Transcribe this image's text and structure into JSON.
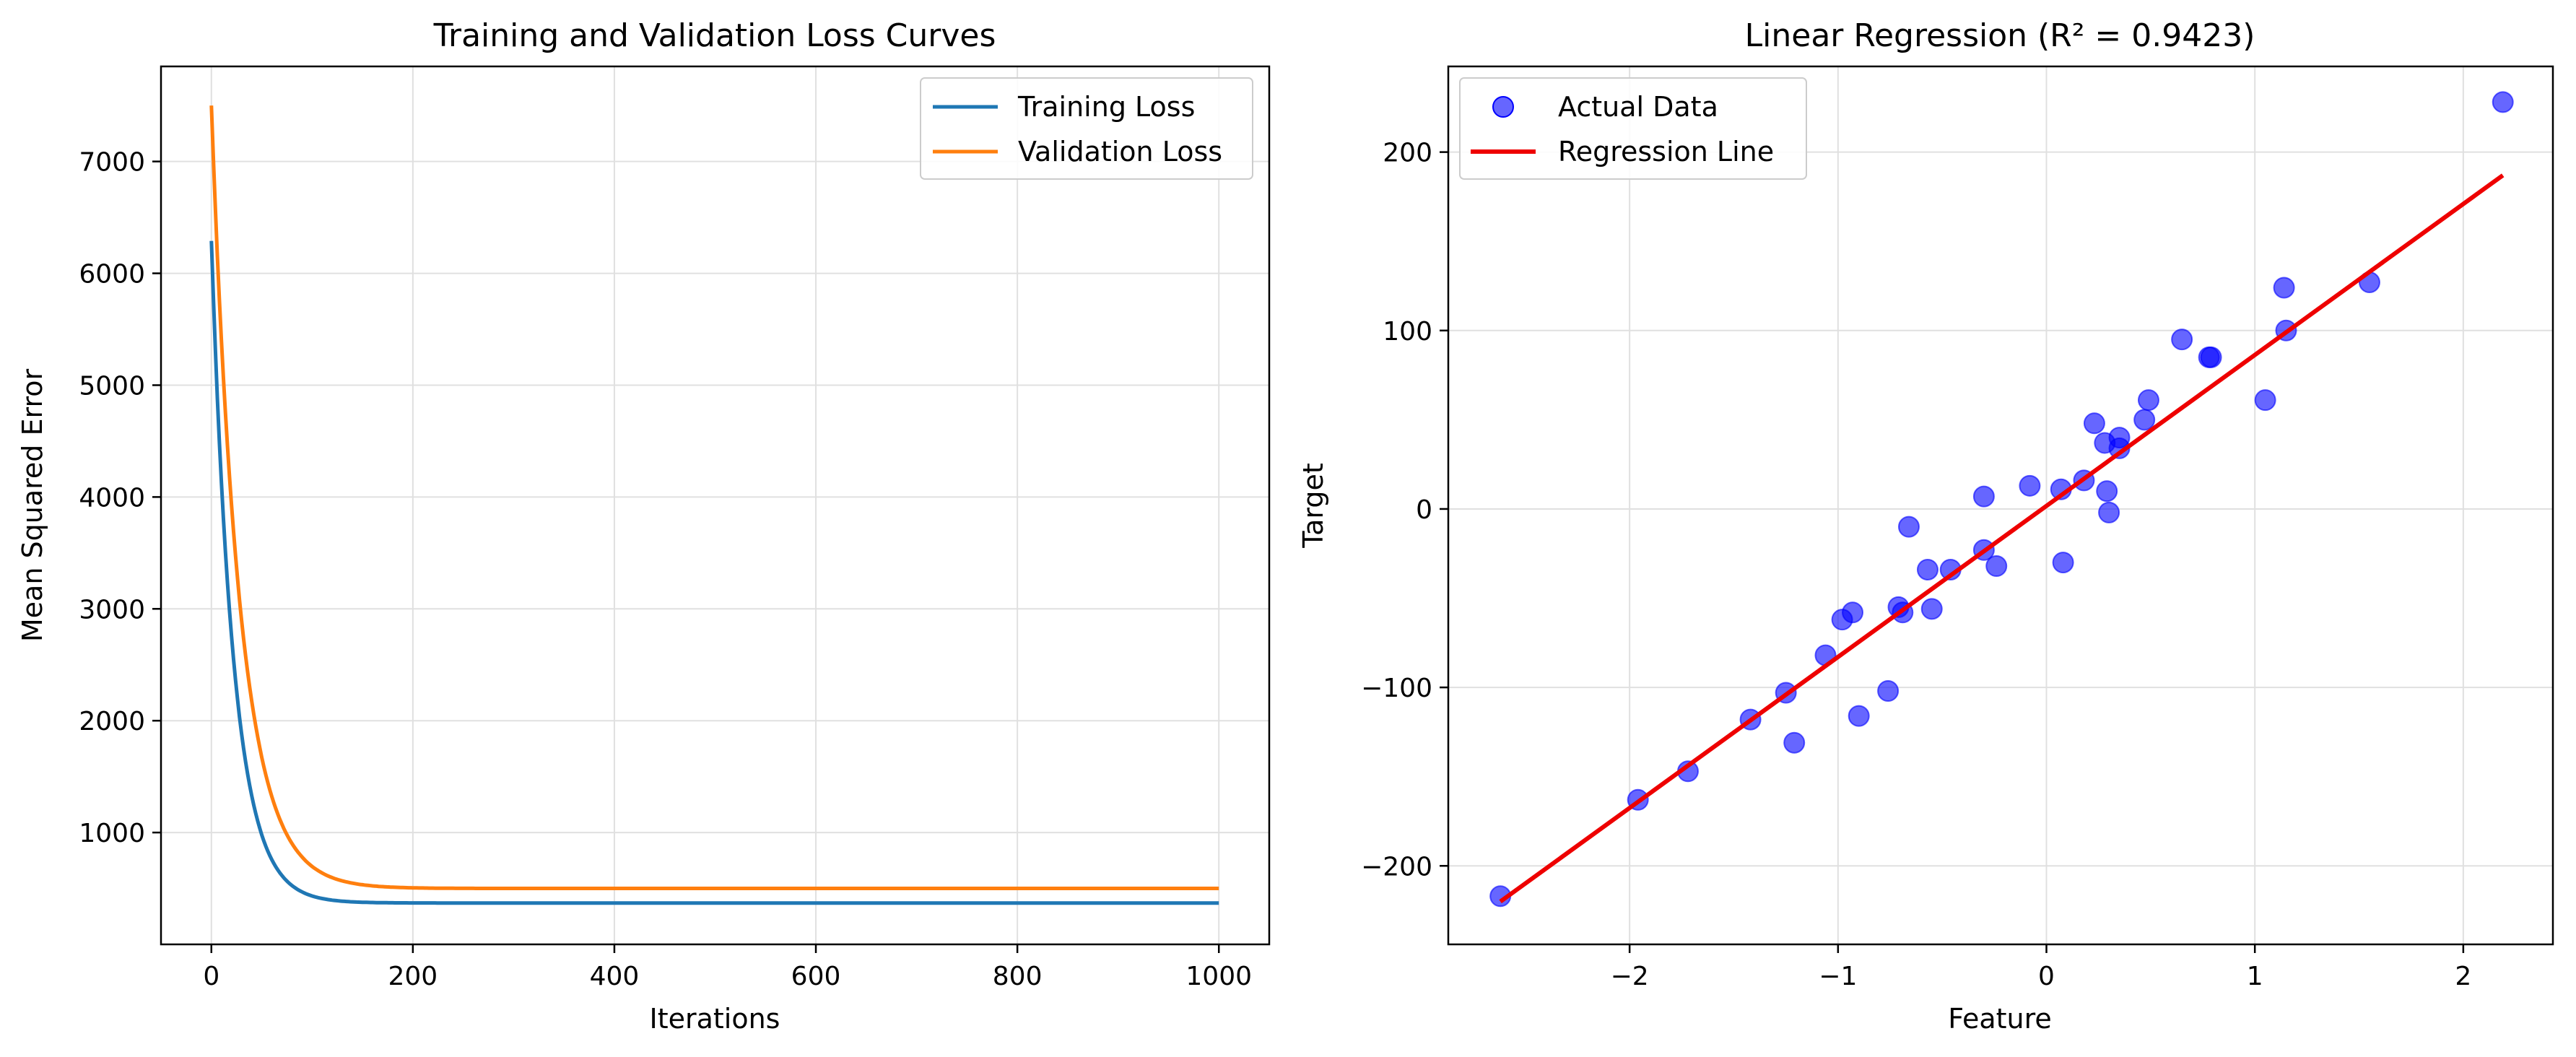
{
  "colors": {
    "training": "#1f77b4",
    "validation": "#ff7f0e",
    "points": "#0000ff",
    "regression": "#ee0000",
    "grid": "#e0e0e0"
  },
  "chart_data": [
    {
      "type": "line",
      "title": "Training and Validation Loss Curves",
      "xlabel": "Iterations",
      "ylabel": "Mean Squared Error",
      "xlim": [
        -50,
        1050
      ],
      "ylim": [
        0,
        7850
      ],
      "xticks": [
        0,
        200,
        400,
        600,
        800,
        1000
      ],
      "yticks": [
        1000,
        2000,
        3000,
        4000,
        5000,
        6000,
        7000
      ],
      "grid": true,
      "legend_position": "top-right",
      "series": [
        {
          "name": "Training Loss",
          "start": 6290,
          "asymptote": 370,
          "decay": 22,
          "x_max": 1000
        },
        {
          "name": "Validation Loss",
          "start": 7500,
          "asymptote": 500,
          "decay": 28,
          "x_max": 1000
        }
      ]
    },
    {
      "type": "scatter",
      "title": "Linear Regression (R² = 0.9423)",
      "xlabel": "Feature",
      "ylabel": "Target",
      "xlim": [
        -2.87,
        2.43
      ],
      "ylim": [
        -244,
        248
      ],
      "xticks": [
        -2,
        -1,
        0,
        1,
        2
      ],
      "yticks": [
        -200,
        -100,
        0,
        100,
        200
      ],
      "xtick_labels": [
        "−2",
        "−1",
        "0",
        "1",
        "2"
      ],
      "ytick_labels": [
        "−200",
        "−100",
        "0",
        "100",
        "200"
      ],
      "grid": true,
      "legend_position": "top-left",
      "series": [
        {
          "name": "Actual Data",
          "points": [
            [
              -2.62,
              -217
            ],
            [
              -1.96,
              -163
            ],
            [
              -1.72,
              -147
            ],
            [
              -1.42,
              -118
            ],
            [
              -1.25,
              -103
            ],
            [
              -1.21,
              -131
            ],
            [
              -1.06,
              -82
            ],
            [
              -0.98,
              -62
            ],
            [
              -0.93,
              -58
            ],
            [
              -0.9,
              -116
            ],
            [
              -0.76,
              -102
            ],
            [
              -0.71,
              -55
            ],
            [
              -0.69,
              -58
            ],
            [
              -0.66,
              -10
            ],
            [
              -0.57,
              -34
            ],
            [
              -0.55,
              -56
            ],
            [
              -0.46,
              -34
            ],
            [
              -0.3,
              7
            ],
            [
              -0.3,
              -23
            ],
            [
              -0.24,
              -32
            ],
            [
              -0.08,
              13
            ],
            [
              0.07,
              11
            ],
            [
              0.08,
              -30
            ],
            [
              0.18,
              16
            ],
            [
              0.23,
              48
            ],
            [
              0.28,
              37
            ],
            [
              0.29,
              10
            ],
            [
              0.3,
              -2
            ],
            [
              0.35,
              40
            ],
            [
              0.35,
              34
            ],
            [
              0.47,
              50
            ],
            [
              0.49,
              61
            ],
            [
              0.65,
              95
            ],
            [
              0.78,
              85
            ],
            [
              0.79,
              85
            ],
            [
              1.05,
              61
            ],
            [
              1.14,
              124
            ],
            [
              1.15,
              100
            ],
            [
              1.55,
              127
            ],
            [
              2.19,
              228
            ]
          ]
        },
        {
          "name": "Regression Line",
          "line": [
            [
              -2.62,
              -220
            ],
            [
              2.19,
              187
            ]
          ]
        }
      ]
    }
  ]
}
